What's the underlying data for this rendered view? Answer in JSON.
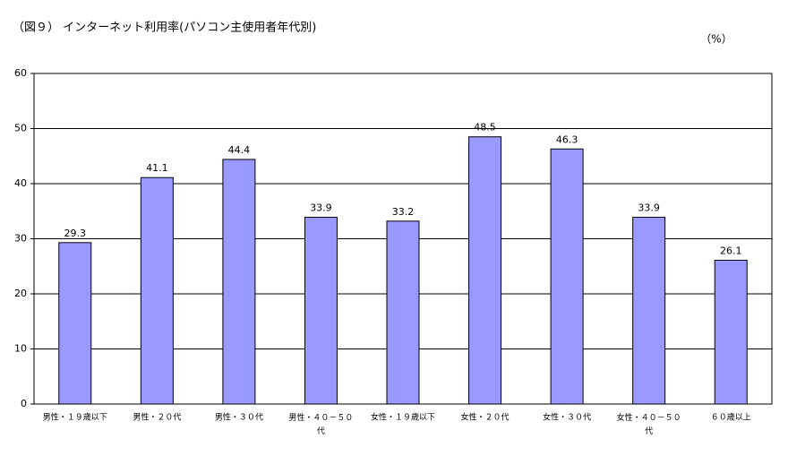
{
  "chart_data": {
    "type": "bar",
    "title": "（図９） インターネット利用率(パソコン主使用者年代別)",
    "unit_label": "（%）",
    "categories": [
      "男性・１９歳以下",
      "男性・２０代",
      "男性・３０代",
      "男性・４０－５０代",
      "女性・１９歳以下",
      "女性・２０代",
      "女性・３０代",
      "女性・４０－５０代",
      "６０歳以上"
    ],
    "values": [
      29.3,
      41.1,
      44.4,
      33.9,
      33.2,
      48.5,
      46.3,
      33.9,
      26.1
    ],
    "color": "#9999ff",
    "ylim": [
      0,
      60
    ],
    "yticks": [
      0,
      10,
      20,
      30,
      40,
      50,
      60
    ],
    "grid": true
  }
}
